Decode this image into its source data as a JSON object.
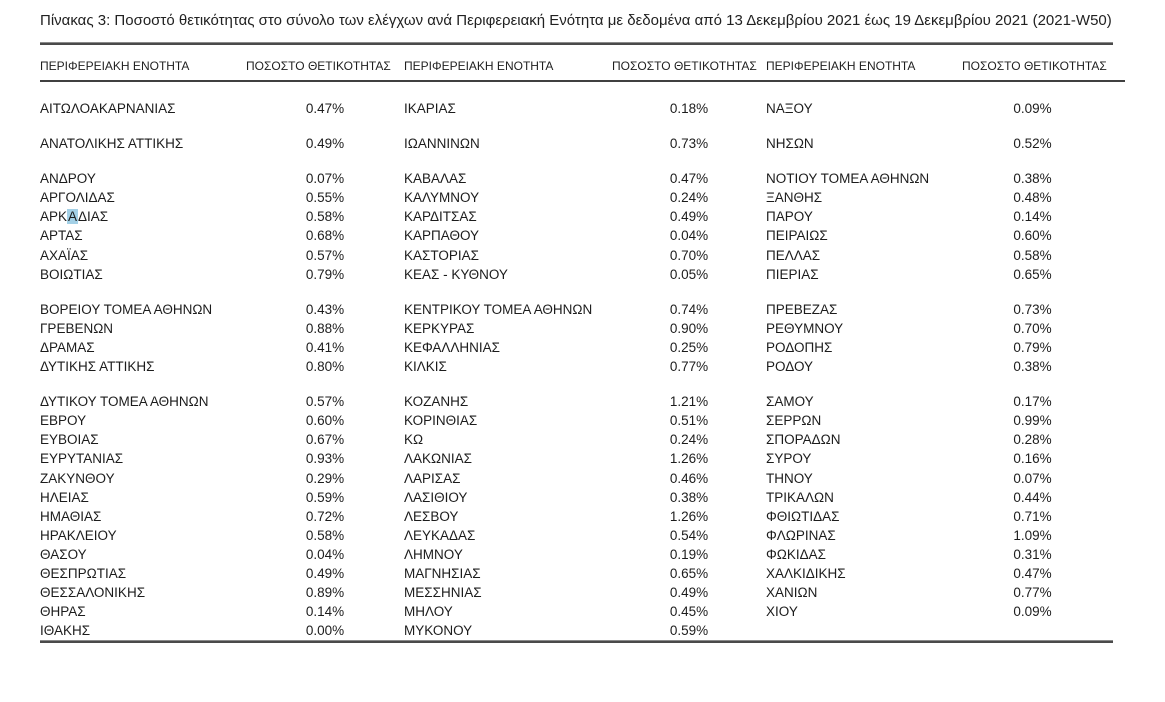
{
  "caption": "Πίνακας 3: Ποσοστό θετικότητας στο σύνολο των ελέγχων ανά Περιφερειακή Ενότητα με δεδομένα από 13 Δεκεμβρίου 2021 έως 19 Δεκεμβρίου 2021 (2021-W50)",
  "table": {
    "column_headers": [
      "ΠΕΡΙΦΕΡΕΙΑΚΗ ΕΝΟΤΗΤΑ",
      "ΠΟΣΟΣΤΟ ΘΕΤΙΚΟΤΗΤΑΣ",
      "ΠΕΡΙΦΕΡΕΙΑΚΗ ΕΝΟΤΗΤΑ",
      "ΠΟΣΟΣΤΟ ΘΕΤΙΚΟΤΗΤΑΣ",
      "ΠΕΡΙΦΕΡΕΙΑΚΗ ΕΝΟΤΗΤΑ",
      "ΠΟΣΟΣΤΟ ΘΕΤΙΚΟΤΗΤΑΣ"
    ],
    "groups": [
      [
        [
          "ΑΙΤΩΛΟΑΚΑΡΝΑΝΙΑΣ",
          "0.47%",
          "ΙΚΑΡΙΑΣ",
          "0.18%",
          "ΝΑΞΟΥ",
          "0.09%"
        ]
      ],
      [
        [
          "ΑΝΑΤΟΛΙΚΗΣ ΑΤΤΙΚΗΣ",
          "0.49%",
          "ΙΩΑΝΝΙΝΩΝ",
          "0.73%",
          "ΝΗΣΩΝ",
          "0.52%"
        ]
      ],
      [
        [
          "ΑΝΔΡΟΥ",
          "0.07%",
          "ΚΑΒΑΛΑΣ",
          "0.47%",
          "ΝΟΤΙΟΥ ΤΟΜΕΑ ΑΘΗΝΩΝ",
          "0.38%"
        ],
        [
          "ΑΡΓΟΛΙΔΑΣ",
          "0.55%",
          "ΚΑΛΥΜΝΟΥ",
          "0.24%",
          "ΞΑΝΘΗΣ",
          "0.48%"
        ],
        [
          "ΑΡΚΑΔΙΑΣ",
          "0.58%",
          "ΚΑΡΔΙΤΣΑΣ",
          "0.49%",
          "ΠΑΡΟΥ",
          "0.14%"
        ],
        [
          "ΑΡΤΑΣ",
          "0.68%",
          "ΚΑΡΠΑΘΟΥ",
          "0.04%",
          "ΠΕΙΡΑΙΩΣ",
          "0.60%"
        ],
        [
          "ΑΧΑΪΑΣ",
          "0.57%",
          "ΚΑΣΤΟΡΙΑΣ",
          "0.70%",
          "ΠΕΛΛΑΣ",
          "0.58%"
        ],
        [
          "ΒΟΙΩΤΙΑΣ",
          "0.79%",
          "ΚΕΑΣ - ΚΥΘΝΟΥ",
          "0.05%",
          "ΠΙΕΡΙΑΣ",
          "0.65%"
        ]
      ],
      [
        [
          "ΒΟΡΕΙΟΥ ΤΟΜΕΑ ΑΘΗΝΩΝ",
          "0.43%",
          "ΚΕΝΤΡΙΚΟΥ ΤΟΜΕΑ ΑΘΗΝΩΝ",
          "0.74%",
          "ΠΡΕΒΕΖΑΣ",
          "0.73%"
        ],
        [
          "ΓΡΕΒΕΝΩΝ",
          "0.88%",
          "ΚΕΡΚΥΡΑΣ",
          "0.90%",
          "ΡΕΘΥΜΝΟΥ",
          "0.70%"
        ],
        [
          "ΔΡΑΜΑΣ",
          "0.41%",
          "ΚΕΦΑΛΛΗΝΙΑΣ",
          "0.25%",
          "ΡΟΔΟΠΗΣ",
          "0.79%"
        ],
        [
          "ΔΥΤΙΚΗΣ ΑΤΤΙΚΗΣ",
          "0.80%",
          "ΚΙΛΚΙΣ",
          "0.77%",
          "ΡΟΔΟΥ",
          "0.38%"
        ]
      ],
      [
        [
          "ΔΥΤΙΚΟΥ ΤΟΜΕΑ ΑΘΗΝΩΝ",
          "0.57%",
          "ΚΟΖΑΝΗΣ",
          "1.21%",
          "ΣΑΜΟΥ",
          "0.17%"
        ],
        [
          "ΕΒΡΟΥ",
          "0.60%",
          "ΚΟΡΙΝΘΙΑΣ",
          "0.51%",
          "ΣΕΡΡΩΝ",
          "0.99%"
        ],
        [
          "ΕΥΒΟΙΑΣ",
          "0.67%",
          "ΚΩ",
          "0.24%",
          "ΣΠΟΡΑΔΩΝ",
          "0.28%"
        ],
        [
          "ΕΥΡΥΤΑΝΙΑΣ",
          "0.93%",
          "ΛΑΚΩΝΙΑΣ",
          "1.26%",
          "ΣΥΡΟΥ",
          "0.16%"
        ],
        [
          "ΖΑΚΥΝΘΟΥ",
          "0.29%",
          "ΛΑΡΙΣΑΣ",
          "0.46%",
          "ΤΗΝΟΥ",
          "0.07%"
        ],
        [
          "ΗΛΕΙΑΣ",
          "0.59%",
          "ΛΑΣΙΘΙΟΥ",
          "0.38%",
          "ΤΡΙΚΑΛΩΝ",
          "0.44%"
        ],
        [
          "ΗΜΑΘΙΑΣ",
          "0.72%",
          "ΛΕΣΒΟΥ",
          "1.26%",
          "ΦΘΙΩΤΙΔΑΣ",
          "0.71%"
        ],
        [
          "ΗΡΑΚΛΕΙΟΥ",
          "0.58%",
          "ΛΕΥΚΑΔΑΣ",
          "0.54%",
          "ΦΛΩΡΙΝΑΣ",
          "1.09%"
        ],
        [
          "ΘΑΣΟΥ",
          "0.04%",
          "ΛΗΜΝΟΥ",
          "0.19%",
          "ΦΩΚΙΔΑΣ",
          "0.31%"
        ],
        [
          "ΘΕΣΠΡΩΤΙΑΣ",
          "0.49%",
          "ΜΑΓΝΗΣΙΑΣ",
          "0.65%",
          "ΧΑΛΚΙΔΙΚΗΣ",
          "0.47%"
        ],
        [
          "ΘΕΣΣΑΛΟΝΙΚΗΣ",
          "0.89%",
          "ΜΕΣΣΗΝΙΑΣ",
          "0.49%",
          "ΧΑΝΙΩΝ",
          "0.77%"
        ],
        [
          "ΘΗΡΑΣ",
          "0.14%",
          "ΜΗΛΟΥ",
          "0.45%",
          "ΧΙΟΥ",
          "0.09%"
        ],
        [
          "ΙΘΑΚΗΣ",
          "0.00%",
          "ΜΥΚΟΝΟΥ",
          "0.59%",
          "",
          ""
        ]
      ]
    ]
  },
  "annotation": {
    "highlighted_region": "ΑΡΚΑΔΙΑΣ",
    "highlight_char_index": 3,
    "highlight_color": "#a3d0e6"
  },
  "colors": {
    "text": "#1c1c1c",
    "rule": "#4a4a4a"
  }
}
